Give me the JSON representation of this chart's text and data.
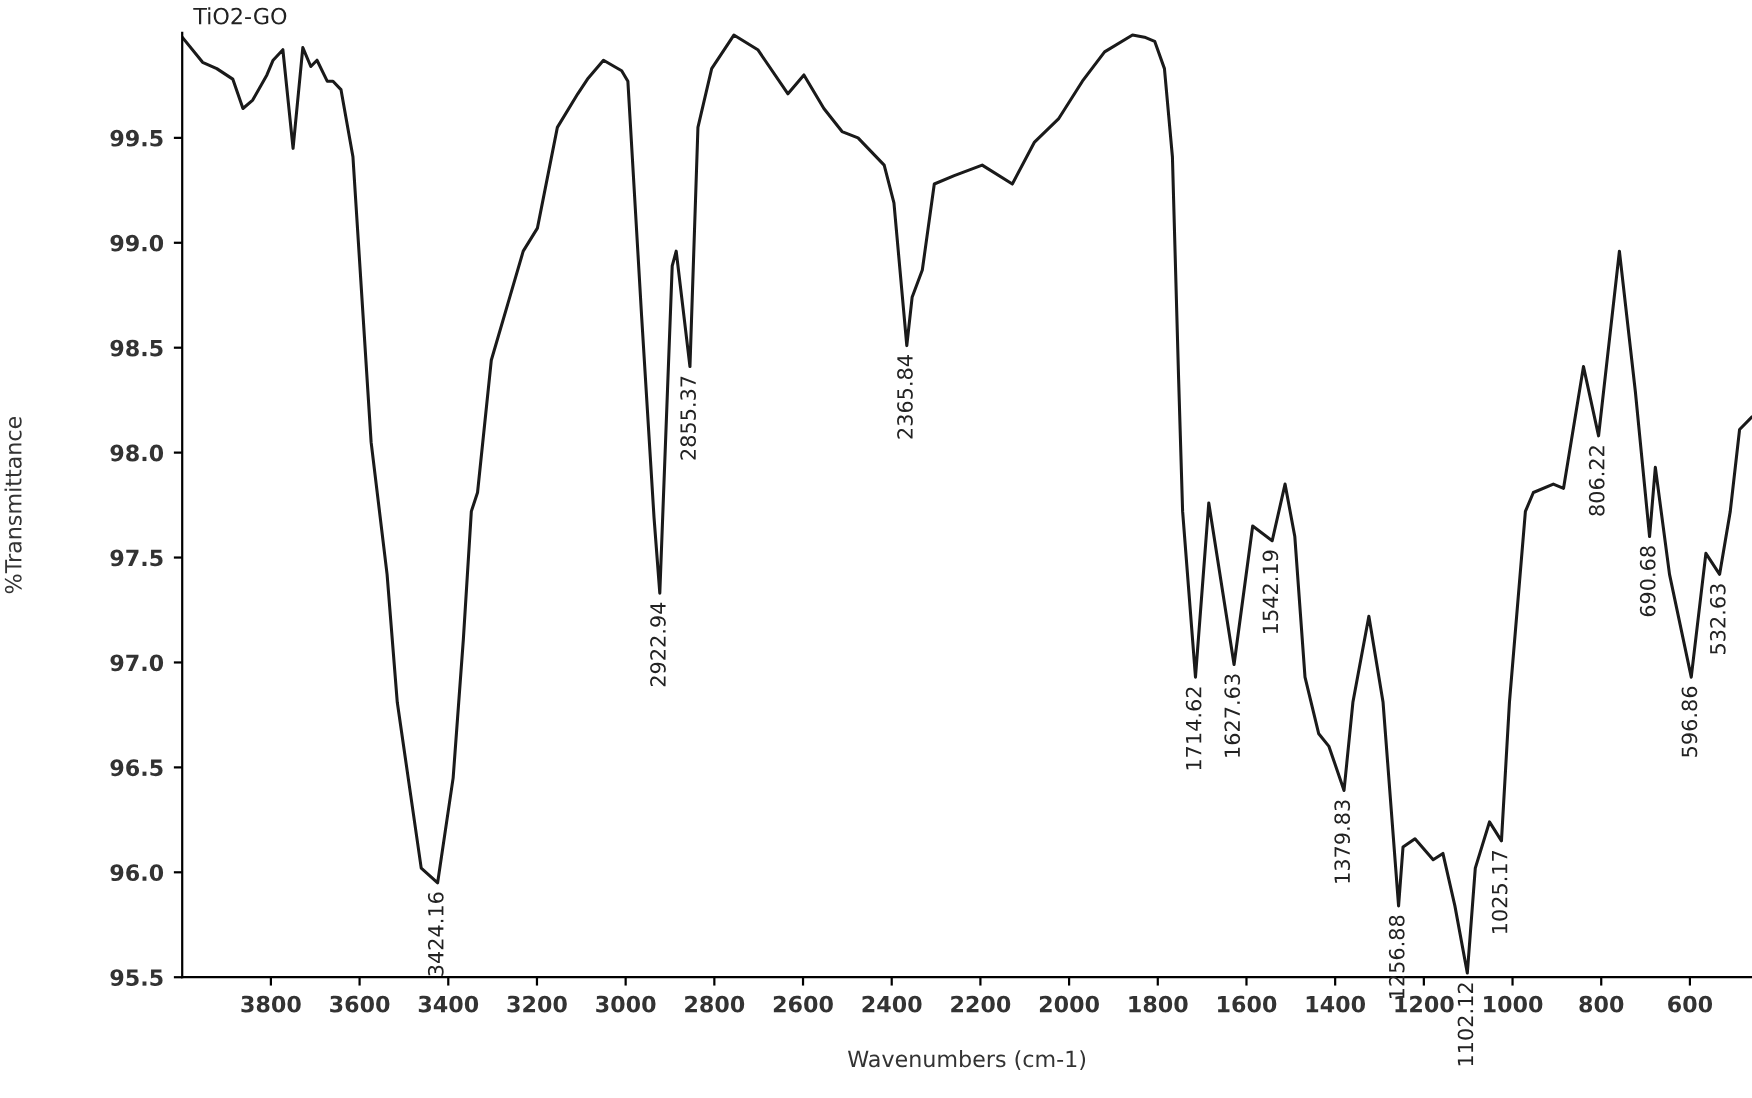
{
  "chart_data": {
    "type": "line",
    "xlabel": "Wavenumbers (cm-1)",
    "ylabel": "%Transmittance",
    "xlim": [
      4000,
      460
    ],
    "ylim": [
      95.5,
      100.0
    ],
    "xticks": [
      3800,
      3600,
      3400,
      3200,
      3000,
      2800,
      2600,
      2400,
      2200,
      2000,
      1800,
      1600,
      1400,
      1200,
      1000,
      800,
      600
    ],
    "yticks": [
      95.5,
      {
        "value": 96,
        "label": "96.0"
      },
      96.5,
      {
        "value": 97,
        "label": "97.0"
      },
      97.5,
      {
        "value": 98,
        "label": "98.0"
      },
      98.5,
      {
        "value": 99,
        "label": "99.0"
      },
      99.5
    ],
    "grid": false,
    "legend": false,
    "marker": "none",
    "line_style": "solid",
    "series": [
      {
        "name": "TiO2-GO",
        "color": "#1a1a1a",
        "x": [
          4000,
          3954,
          3922,
          3886,
          3863,
          3841,
          3809,
          3795,
          3773,
          3750,
          3728,
          3710,
          3696,
          3673,
          3660,
          3642,
          3615,
          3574,
          3538,
          3515,
          3461,
          3424,
          3389,
          3366,
          3348,
          3334,
          3303,
          3231,
          3199,
          3154,
          3108,
          3086,
          3050,
          3009,
          2995,
          2964,
          2936,
          2923,
          2895,
          2886,
          2855,
          2837,
          2806,
          2756,
          2702,
          2634,
          2598,
          2553,
          2512,
          2476,
          2417,
          2395,
          2366,
          2354,
          2331,
          2304,
          2259,
          2196,
          2128,
          2078,
          2024,
          1970,
          1920,
          1857,
          1830,
          1807,
          1785,
          1767,
          1753,
          1744,
          1715,
          1685,
          1628,
          1586,
          1542,
          1513,
          1491,
          1468,
          1437,
          1414,
          1380,
          1360,
          1324,
          1292,
          1257,
          1247,
          1220,
          1179,
          1157,
          1130,
          1102,
          1084,
          1052,
          1025,
          1007,
          971,
          953,
          908,
          885,
          840,
          806,
          759,
          723,
          691,
          678,
          646,
          597,
          564,
          533,
          509,
          488,
          460
        ],
        "values": [
          99.98,
          99.86,
          99.83,
          99.78,
          99.64,
          99.68,
          99.8,
          99.87,
          99.92,
          99.45,
          99.93,
          99.84,
          99.87,
          99.77,
          99.77,
          99.73,
          99.41,
          98.05,
          97.42,
          96.81,
          96.02,
          95.95,
          96.45,
          97.11,
          97.72,
          97.81,
          98.44,
          98.96,
          99.07,
          99.55,
          99.71,
          99.78,
          99.87,
          99.82,
          99.77,
          98.65,
          97.69,
          97.33,
          98.89,
          98.96,
          98.41,
          99.55,
          99.83,
          99.99,
          99.92,
          99.71,
          99.8,
          99.64,
          99.53,
          99.5,
          99.37,
          99.19,
          98.51,
          98.74,
          98.87,
          99.28,
          99.32,
          99.37,
          99.28,
          99.48,
          99.59,
          99.77,
          99.91,
          99.99,
          99.98,
          99.96,
          99.83,
          99.41,
          98.35,
          97.72,
          96.93,
          97.76,
          96.99,
          97.65,
          97.58,
          97.85,
          97.6,
          96.93,
          96.66,
          96.6,
          96.39,
          96.81,
          97.22,
          96.81,
          95.84,
          96.12,
          96.16,
          96.06,
          96.09,
          95.84,
          95.52,
          96.02,
          96.24,
          96.15,
          96.81,
          97.72,
          97.81,
          97.85,
          97.83,
          98.41,
          98.08,
          98.96,
          98.29,
          97.6,
          97.93,
          97.42,
          96.93,
          97.52,
          97.42,
          97.72,
          98.11,
          98.17
        ]
      }
    ],
    "annotations": [
      {
        "text": "3424.16",
        "x": 3424,
        "y": 95.95
      },
      {
        "text": "2922.94",
        "x": 2923,
        "y": 97.33
      },
      {
        "text": "2855.37",
        "x": 2855,
        "y": 98.41
      },
      {
        "text": "2365.84",
        "x": 2366,
        "y": 98.51
      },
      {
        "text": "1714.62",
        "x": 1715,
        "y": 96.93
      },
      {
        "text": "1627.63",
        "x": 1628,
        "y": 96.99
      },
      {
        "text": "1542.19",
        "x": 1542,
        "y": 97.58
      },
      {
        "text": "1379.83",
        "x": 1380,
        "y": 96.39
      },
      {
        "text": "1256.88",
        "x": 1257,
        "y": 95.84
      },
      {
        "text": "1102.12",
        "x": 1102,
        "y": 95.52
      },
      {
        "text": "1025.17",
        "x": 1025,
        "y": 96.15
      },
      {
        "text": "806.22",
        "x": 806,
        "y": 98.08
      },
      {
        "text": "690.68",
        "x": 691,
        "y": 97.6
      },
      {
        "text": "596.86",
        "x": 597,
        "y": 96.93
      },
      {
        "text": "532.63",
        "x": 533,
        "y": 97.42
      }
    ]
  }
}
